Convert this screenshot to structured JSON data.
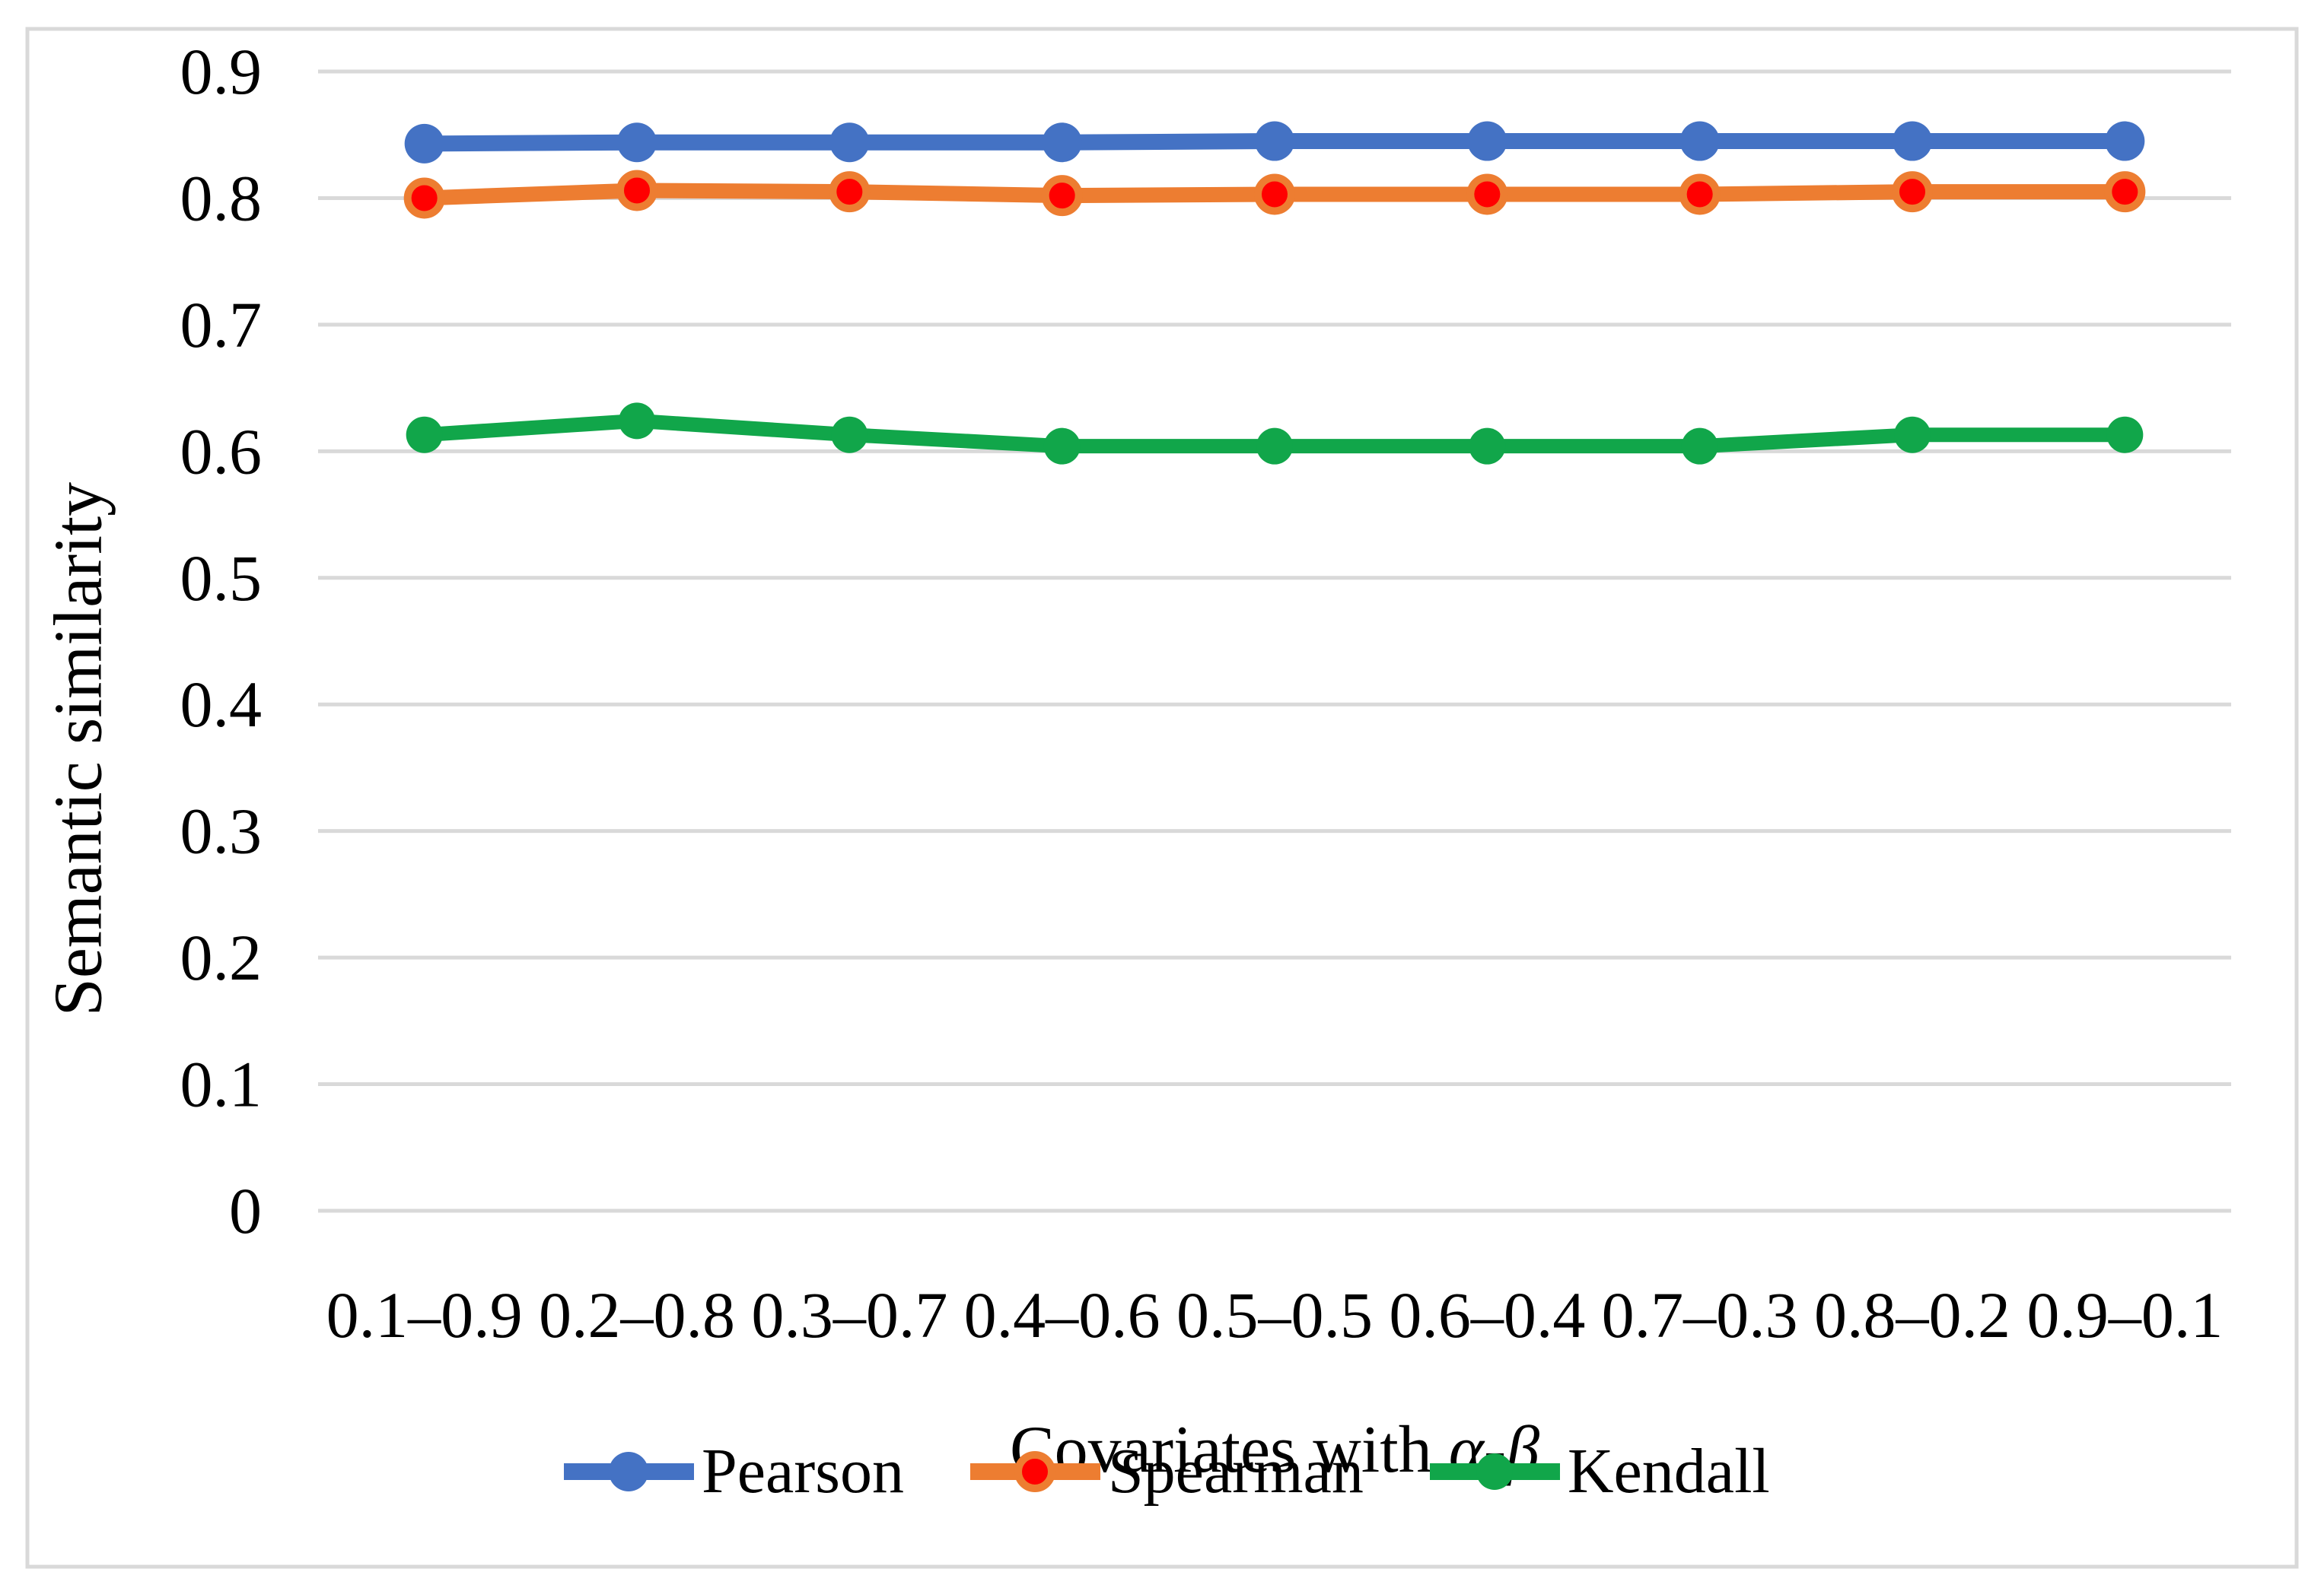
{
  "figure": {
    "background": "#FFFFFF",
    "border_color": "#D9D9D9",
    "text_color": "#000000"
  },
  "chart_data": {
    "type": "line",
    "title": "",
    "categories": [
      "0.1–0.9",
      "0.2–0.8",
      "0.3–0.7",
      "0.4–0.6",
      "0.5–0.5",
      "0.6–0.4",
      "0.7–0.3",
      "0.8–0.2",
      "0.9–0.1"
    ],
    "series": [
      {
        "name": "Pearson",
        "color": "#4472C4",
        "marker_fill": "#4472C4",
        "marker_stroke": "#4472C4",
        "marker_stroke_width": 0,
        "marker_radius": 26,
        "line_width": 21,
        "values": [
          0.843,
          0.844,
          0.844,
          0.844,
          0.845,
          0.845,
          0.845,
          0.845,
          0.845
        ]
      },
      {
        "name": "Spearman",
        "color": "#ED7D31",
        "marker_fill": "#FF0000",
        "marker_stroke": "#ED7D31",
        "marker_stroke_width": 10,
        "marker_radius": 22,
        "line_width": 20,
        "values": [
          0.8,
          0.806,
          0.805,
          0.802,
          0.803,
          0.803,
          0.803,
          0.805,
          0.805
        ]
      },
      {
        "name": "Kendall",
        "color": "#11A64A",
        "marker_fill": "#11A64A",
        "marker_stroke": "#11A64A",
        "marker_stroke_width": 0,
        "marker_radius": 24,
        "line_width": 19,
        "values": [
          0.613,
          0.624,
          0.613,
          0.604,
          0.604,
          0.604,
          0.604,
          0.613,
          0.613
        ]
      }
    ],
    "xlabel": "Covariates with α-β",
    "xlabel_prefix": "Covariates with ",
    "xlabel_greek": "α-β",
    "ylabel": "Semantic similarity",
    "y_ticks": [
      "0.9",
      "0.8",
      "0.7",
      "0.6",
      "0.5",
      "0.4",
      "0.3",
      "0.2",
      "0.1",
      "0"
    ],
    "ylim": [
      0,
      0.9
    ],
    "grid": "horizontal",
    "grid_color": "#D9D9D9",
    "legend_position": "bottom"
  }
}
